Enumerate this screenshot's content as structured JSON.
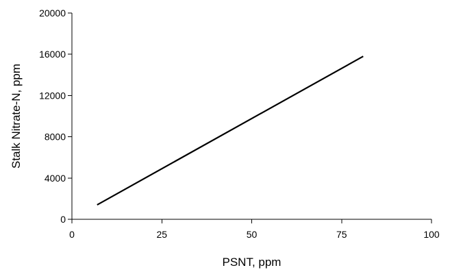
{
  "chart_data": {
    "type": "line",
    "title": "",
    "xlabel": "PSNT, ppm",
    "ylabel": "Stalk Nitrate-N, ppm",
    "xlim": [
      0,
      100
    ],
    "ylim": [
      0,
      20000
    ],
    "x_ticks": [
      0,
      25,
      50,
      75,
      100
    ],
    "y_ticks": [
      0,
      4000,
      8000,
      12000,
      16000,
      20000
    ],
    "grid": false,
    "legend": "none",
    "series": [
      {
        "x": [
          7,
          81
        ],
        "y": [
          1400,
          15800
        ]
      }
    ],
    "line_color": "#000000"
  }
}
